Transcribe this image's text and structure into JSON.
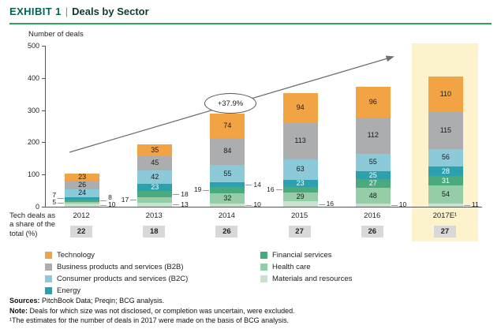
{
  "header": {
    "exhibit_label": "EXHIBIT 1",
    "separator": "|",
    "title": "Deals by Sector"
  },
  "chart_data": {
    "type": "bar",
    "stacked": true,
    "title": "Deals by Sector",
    "ylabel": "Number of deals",
    "xlabel": "",
    "ylim": [
      0,
      500
    ],
    "yticks": [
      "0",
      "100",
      "200",
      "300",
      "400",
      "500"
    ],
    "categories": [
      "2012",
      "2013",
      "2014",
      "2015",
      "2016",
      "2017E¹"
    ],
    "series": [
      {
        "name": "Technology",
        "color": "#F2A444",
        "values": [
          23,
          35,
          74,
          94,
          96,
          110
        ]
      },
      {
        "name": "Business products and services (B2B)",
        "color": "#ABADAF",
        "values": [
          26,
          45,
          84,
          113,
          112,
          115
        ]
      },
      {
        "name": "Consumer products and services (B2C)",
        "color": "#8CC9D9",
        "values": [
          24,
          42,
          55,
          63,
          55,
          56
        ]
      },
      {
        "name": "Energy",
        "color": "#2CA1AD",
        "values": [
          7,
          23,
          14,
          23,
          25,
          28
        ]
      },
      {
        "name": "Financial services",
        "color": "#48AA7D",
        "values": [
          8,
          18,
          19,
          16,
          27,
          31
        ]
      },
      {
        "name": "Health care",
        "color": "#94CDA8",
        "values": [
          5,
          17,
          32,
          29,
          48,
          54
        ]
      },
      {
        "name": "Materials and resources",
        "color": "#C9E2CF",
        "values": [
          10,
          13,
          10,
          16,
          10,
          11
        ]
      }
    ],
    "annotation": "+37.9%",
    "highlight_category_index": 5,
    "highlight_color": "#FCF2CC",
    "legend_position": "bottom",
    "legend_columns": [
      [
        0,
        1,
        2,
        3
      ],
      [
        4,
        5,
        6
      ]
    ],
    "tech_share": {
      "label_lines": [
        "Tech deals as",
        "a share of the",
        "total (%)"
      ],
      "values": [
        "22",
        "18",
        "26",
        "27",
        "26",
        "27"
      ]
    }
  },
  "footnotes": {
    "sources_label": "Sources:",
    "sources_text": " PitchBook Data; Preqin; BCG analysis.",
    "note_label": "Note:",
    "note_text": " Deals for which size was not disclosed, or completion was uncertain, were excluded.",
    "footnote1": "¹The estimates for the number of deals in 2017 were made on the basis of BCG analysis."
  }
}
